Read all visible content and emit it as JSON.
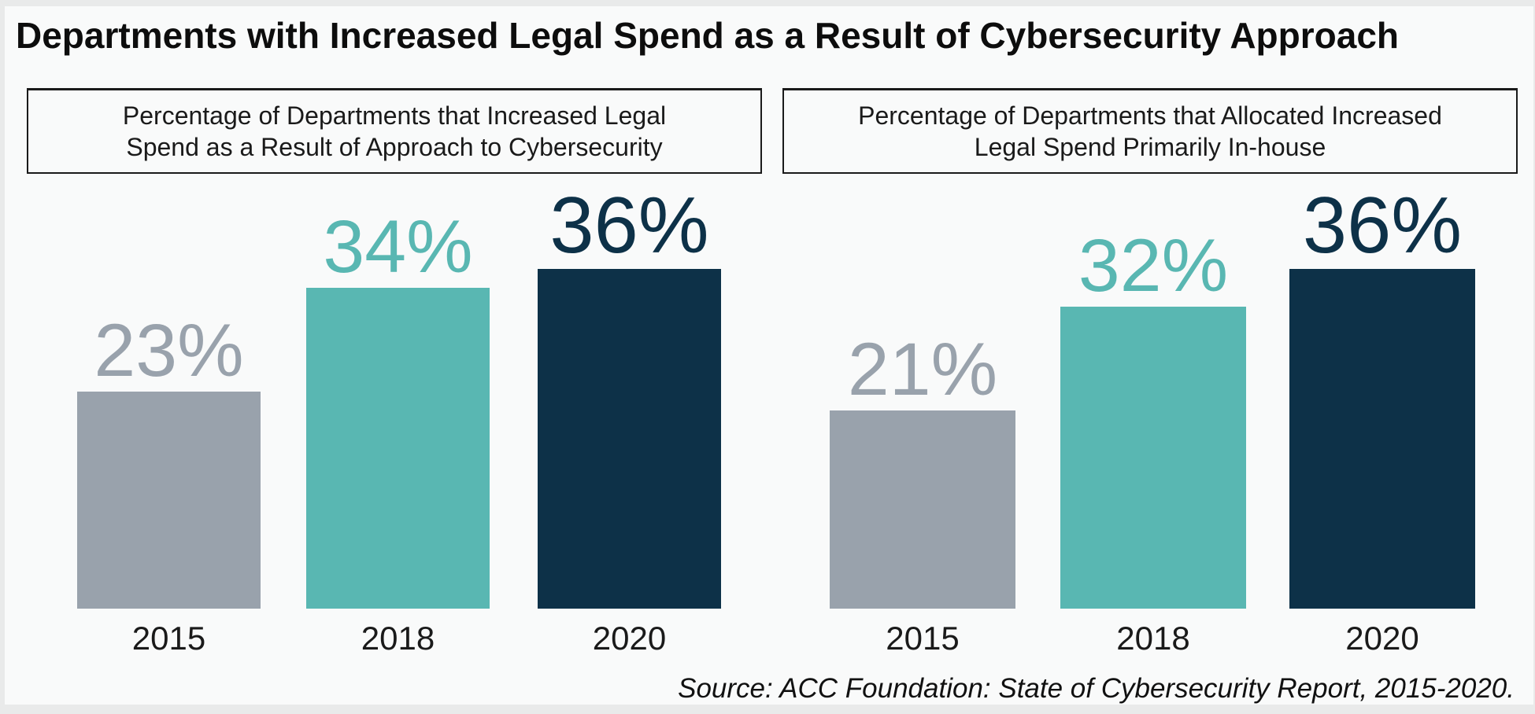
{
  "title": "Departments with Increased Legal Spend as a Result of Cybersecurity Approach",
  "source": "Source: ACC Foundation: State of Cybersecurity Report, 2015-2020.",
  "colors": {
    "background": "#f9fafa",
    "page_edge": "#e9eaea",
    "box_border": "#1a1a1a",
    "bar_2015": "#99a2ac",
    "bar_2018": "#59b7b2",
    "bar_2020": "#0d3148",
    "axis_text": "#1a1a1a"
  },
  "chart_data": [
    {
      "type": "bar",
      "title": "Percentage of Departments that Increased Legal Spend as a Result of Approach to Cybersecurity",
      "categories": [
        "2015",
        "2018",
        "2020"
      ],
      "values": [
        23,
        34,
        36
      ],
      "data_labels": [
        "23%",
        "34%",
        "36%"
      ],
      "bar_colors": [
        "#99a2ac",
        "#59b7b2",
        "#0d3148"
      ],
      "unit": "%",
      "ylim": [
        0,
        40
      ],
      "grid": false,
      "legend": "none",
      "xlabel": "",
      "ylabel": ""
    },
    {
      "type": "bar",
      "title": "Percentage of Departments that Allocated Increased Legal Spend Primarily In-house",
      "categories": [
        "2015",
        "2018",
        "2020"
      ],
      "values": [
        21,
        32,
        36
      ],
      "data_labels": [
        "21%",
        "32%",
        "36%"
      ],
      "bar_colors": [
        "#99a2ac",
        "#59b7b2",
        "#0d3148"
      ],
      "unit": "%",
      "ylim": [
        0,
        40
      ],
      "grid": false,
      "legend": "none",
      "xlabel": "",
      "ylabel": ""
    }
  ]
}
